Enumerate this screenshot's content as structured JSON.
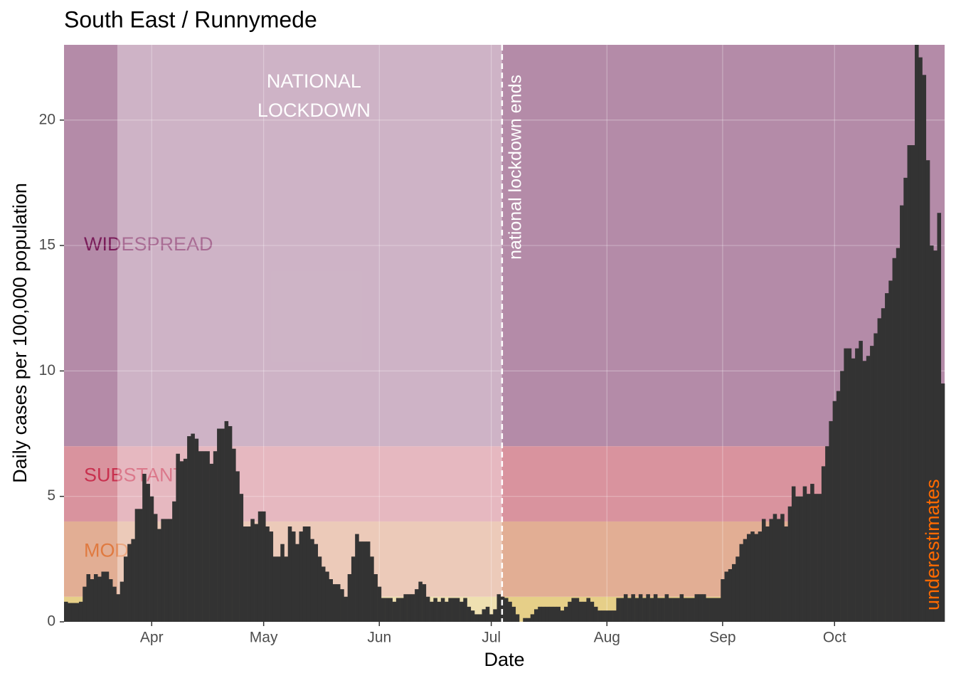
{
  "chart_data": {
    "type": "bar",
    "title": "South East / Runnymede",
    "x_label": "Date",
    "y_label": "Daily cases per 100,000 population",
    "x": [
      69,
      70,
      71,
      72,
      73,
      74,
      75,
      76,
      77,
      78,
      79,
      80,
      81,
      82,
      83,
      84,
      85,
      86,
      87,
      88,
      89,
      90,
      91,
      92,
      93,
      94,
      95,
      96,
      97,
      98,
      99,
      100,
      101,
      102,
      103,
      104,
      105,
      106,
      107,
      108,
      109,
      110,
      111,
      112,
      113,
      114,
      115,
      116,
      117,
      118,
      119,
      120,
      121,
      122,
      123,
      124,
      125,
      126,
      127,
      128,
      129,
      130,
      131,
      132,
      133,
      134,
      135,
      136,
      137,
      138,
      139,
      140,
      141,
      142,
      143,
      144,
      145,
      146,
      147,
      148,
      149,
      150,
      151,
      152,
      153,
      154,
      155,
      156,
      157,
      158,
      159,
      160,
      161,
      162,
      163,
      164,
      165,
      166,
      167,
      168,
      169,
      170,
      171,
      172,
      173,
      174,
      175,
      176,
      177,
      178,
      179,
      180,
      181,
      182,
      183,
      184,
      185,
      186,
      187,
      188,
      189,
      190,
      191,
      192,
      193,
      194,
      195,
      196,
      197,
      198,
      199,
      200,
      201,
      202,
      203,
      204,
      205,
      206,
      207,
      208,
      209,
      210,
      211,
      212,
      213,
      214,
      215,
      216,
      217,
      218,
      219,
      220,
      221,
      222,
      223,
      224,
      225,
      226,
      227,
      228,
      229,
      230,
      231,
      232,
      233,
      234,
      235,
      236,
      237,
      238,
      239,
      240,
      241,
      242,
      243,
      244,
      245,
      246,
      247,
      248,
      249,
      250,
      251,
      252,
      253,
      254,
      255,
      256,
      257,
      258,
      259,
      260,
      261,
      262,
      263,
      264,
      265,
      266,
      267,
      268,
      269,
      270,
      271,
      272,
      273,
      274,
      275,
      276,
      277,
      278,
      279,
      280,
      281,
      282,
      283,
      284,
      285,
      286,
      287,
      288,
      289,
      290,
      291,
      292,
      293,
      294,
      295,
      296,
      297,
      298,
      299,
      300,
      301,
      302,
      303,
      304
    ],
    "values": [
      0.8,
      0.75,
      0.75,
      0.75,
      0.8,
      1.4,
      1.9,
      1.7,
      1.9,
      1.8,
      2.0,
      2.0,
      1.7,
      1.4,
      1.1,
      1.6,
      2.6,
      3.1,
      3.3,
      4.5,
      4.5,
      5.9,
      5.5,
      5.0,
      4.3,
      3.7,
      4.1,
      4.1,
      4.1,
      4.8,
      6.7,
      6.4,
      6.5,
      7.4,
      7.5,
      7.3,
      6.8,
      6.8,
      6.8,
      6.3,
      6.8,
      7.7,
      7.7,
      8.0,
      7.8,
      6.9,
      6.0,
      5.1,
      3.8,
      3.8,
      4.1,
      3.9,
      4.4,
      4.4,
      3.8,
      3.6,
      2.6,
      2.6,
      3.1,
      2.6,
      3.8,
      3.6,
      3.1,
      3.6,
      3.8,
      3.8,
      3.3,
      3.1,
      2.6,
      2.2,
      2.0,
      1.7,
      1.5,
      1.5,
      1.3,
      1.0,
      1.9,
      2.6,
      3.5,
      3.2,
      3.2,
      3.2,
      2.6,
      1.9,
      1.4,
      0.95,
      0.95,
      0.95,
      0.8,
      0.95,
      0.95,
      1.1,
      1.1,
      1.1,
      1.3,
      1.6,
      1.5,
      1.0,
      0.8,
      0.95,
      0.8,
      0.95,
      0.8,
      0.95,
      0.95,
      0.95,
      0.8,
      0.95,
      0.6,
      0.45,
      0.3,
      0.3,
      0.5,
      0.6,
      0.3,
      0.5,
      1.1,
      1.0,
      0.95,
      0.8,
      0.6,
      0.3,
      0,
      0.15,
      0.15,
      0.3,
      0.5,
      0.6,
      0.6,
      0.6,
      0.6,
      0.6,
      0.6,
      0.45,
      0.6,
      0.8,
      0.95,
      0.95,
      0.8,
      0.8,
      0.95,
      0.8,
      0.6,
      0.45,
      0.45,
      0.45,
      0.45,
      0.45,
      0.95,
      0.95,
      1.1,
      0.95,
      1.1,
      0.95,
      1.1,
      0.95,
      1.1,
      0.95,
      1.1,
      0.95,
      0.95,
      1.1,
      0.95,
      0.95,
      0.95,
      1.1,
      0.95,
      0.95,
      0.95,
      1.1,
      1.1,
      1.1,
      0.95,
      0.95,
      0.95,
      0.95,
      1.7,
      2.0,
      2.1,
      2.3,
      2.6,
      3.1,
      3.3,
      3.5,
      3.6,
      3.5,
      3.6,
      4.1,
      3.8,
      4.1,
      4.3,
      4.1,
      4.3,
      3.8,
      4.6,
      5.4,
      5.0,
      5.0,
      5.4,
      5.1,
      5.5,
      5.1,
      5.1,
      6.2,
      7.0,
      8.0,
      8.8,
      9.2,
      10.0,
      10.9,
      10.9,
      10.5,
      10.9,
      11.2,
      10.4,
      10.6,
      11.0,
      11.5,
      12.1,
      12.5,
      13.1,
      13.6,
      14.5,
      14.9,
      16.6,
      17.7,
      19.0,
      19.0,
      23.0,
      22.5,
      21.8,
      18.4,
      15.0,
      14.8,
      16.3,
      9.5
    ],
    "color": "#333333",
    "xlim": [
      68.5,
      304.5
    ],
    "xticks": [
      {
        "value": 92,
        "label": "Apr"
      },
      {
        "value": 122,
        "label": "May"
      },
      {
        "value": 153,
        "label": "Jun"
      },
      {
        "value": 183,
        "label": "Jul"
      },
      {
        "value": 214,
        "label": "Aug"
      },
      {
        "value": 245,
        "label": "Sep"
      },
      {
        "value": 275,
        "label": "Oct"
      }
    ],
    "ylim": [
      0,
      23
    ],
    "yticks": [
      0,
      5,
      10,
      15,
      20
    ],
    "grid": true,
    "zones": [
      {
        "ymin": 0,
        "ymax": 1,
        "color": "#e6cf88"
      },
      {
        "ymin": 1,
        "ymax": 4,
        "color": "#e2ae94",
        "label": "MODERATE",
        "label_color": "#e07a40"
      },
      {
        "ymin": 4,
        "ymax": 7,
        "color": "#d9939e",
        "label": "SUBSTANTIAL",
        "label_color": "#c8304e"
      },
      {
        "ymin": 7,
        "ymax": 23,
        "color": "#b48ba8",
        "label": "WIDESPREAD",
        "label_color": "#7a1d5a"
      }
    ],
    "lockdown": {
      "xmin": 82.8,
      "xmax": 185.9,
      "label_lines": [
        "NATIONAL",
        "LOCKDOWN"
      ]
    },
    "vline": {
      "x": 185.9,
      "label": "national lockdown ends"
    },
    "note": {
      "label": "underestimates",
      "color": "#ff6a00"
    }
  }
}
